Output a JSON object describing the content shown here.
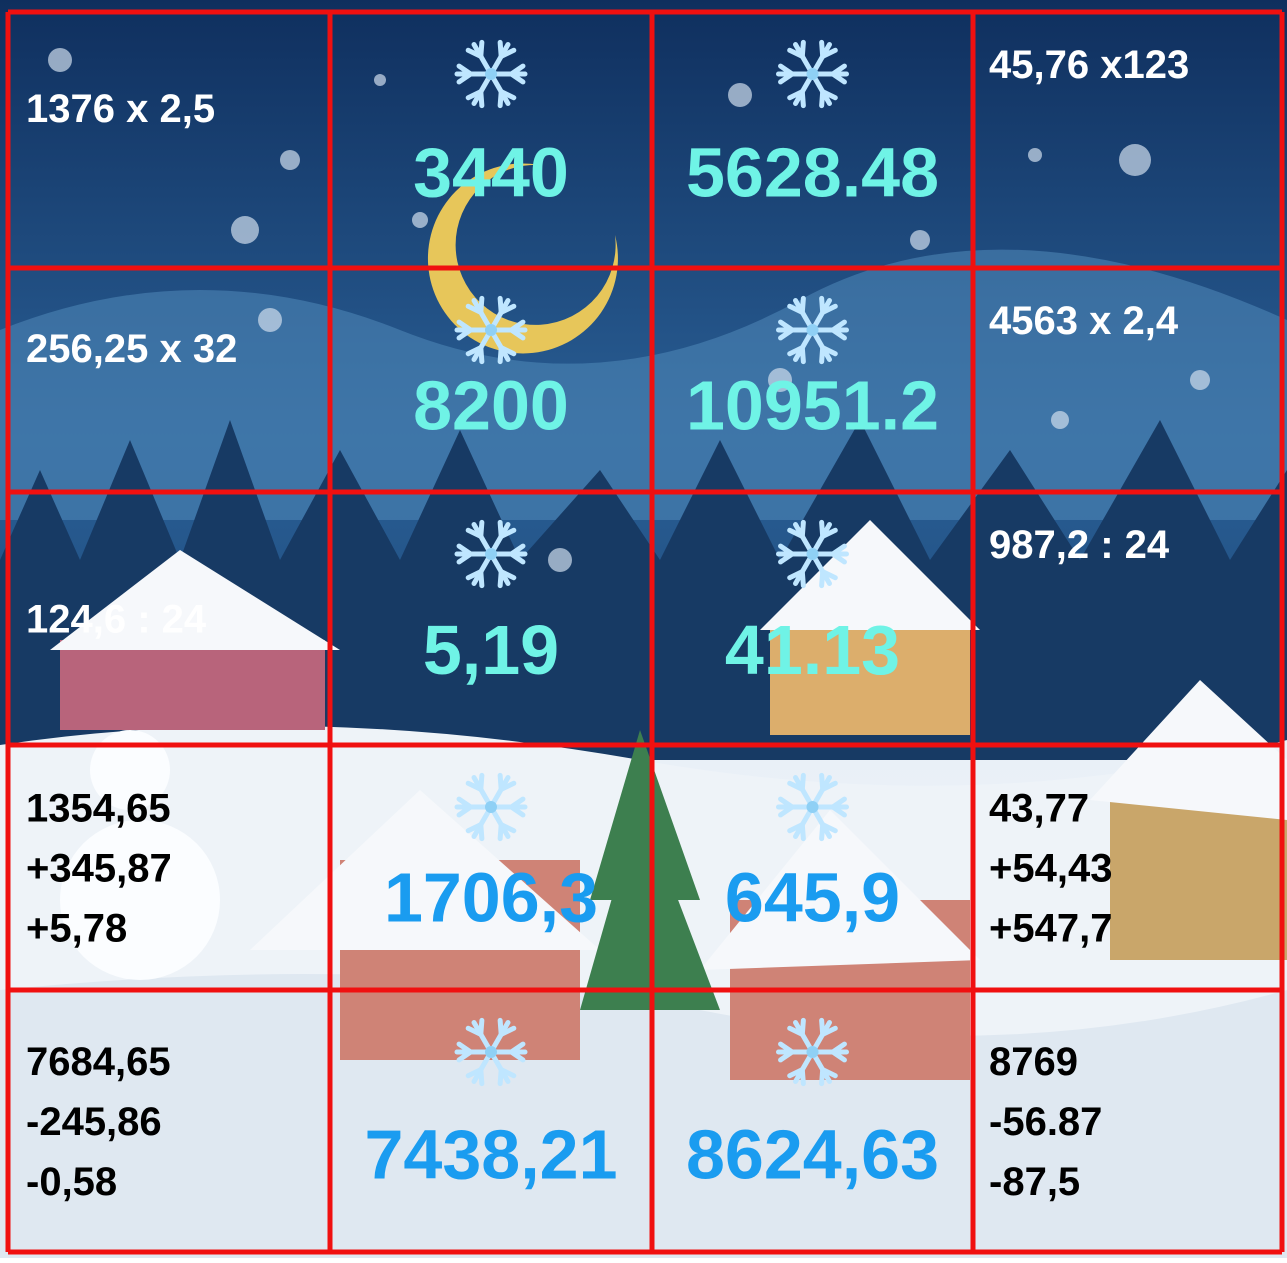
{
  "grid": {
    "rows": [
      {
        "left": [
          "1376 x 2,5"
        ],
        "answers": [
          "3440",
          "5628.48"
        ],
        "right": [
          "45,76 x123"
        ]
      },
      {
        "left": [
          "256,25 x 32"
        ],
        "answers": [
          "8200",
          "10951.2"
        ],
        "right": [
          "4563 x 2,4"
        ]
      },
      {
        "left": [
          "124,6 : 24"
        ],
        "answers": [
          "5,19",
          "41.13"
        ],
        "right": [
          "987,2 : 24"
        ]
      },
      {
        "left": [
          "1354,65",
          "+345,87",
          "+5,78"
        ],
        "answers": [
          "1706,3",
          "645,9"
        ],
        "right": [
          "43,77",
          "+54,43",
          "+547,7"
        ]
      },
      {
        "left": [
          "7684,65",
          "-245,86",
          "-0,58"
        ],
        "answers": [
          "7438,21",
          "8624,63"
        ],
        "right": [
          "8769",
          "-56.87",
          "-87,5"
        ]
      }
    ]
  }
}
